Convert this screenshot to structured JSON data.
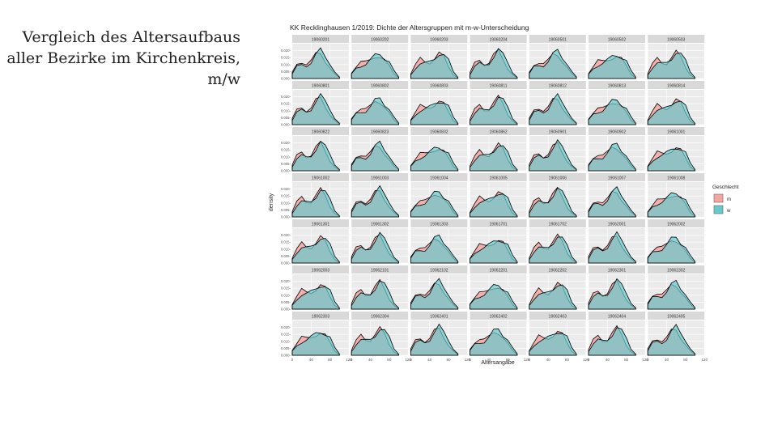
{
  "slide": {
    "title_lines": [
      "Vergleich des Altersaufbaus",
      "aller Bezirke im Kirchenkreis,",
      "m/w"
    ]
  },
  "chart_data": {
    "type": "area",
    "subtype": "facetted-density",
    "title": "KK Recklinghausen 1/2019: Dichte der Altersgruppen mit m-w-Unterscheidung",
    "xlabel": "Altersangabe",
    "ylabel": "density",
    "xlim": [
      0,
      120
    ],
    "ylim": [
      0,
      0.025
    ],
    "x_ticks": [
      0,
      40,
      80,
      120
    ],
    "x_tick_labels": [
      "0",
      "40",
      "80",
      "120"
    ],
    "y_ticks": [
      0,
      0.005,
      0.01,
      0.015,
      0.02
    ],
    "y_tick_labels": [
      "0.000-",
      "0.005-",
      "0.010-",
      "0.015-",
      "0.020-"
    ],
    "grid": true,
    "legend": {
      "title": "Geschlecht",
      "position": "right",
      "entries": [
        {
          "label": "m",
          "color": "#f4a6a1"
        },
        {
          "label": "w",
          "color": "#66c9cc"
        }
      ]
    },
    "colors": {
      "m": "#f4a6a1",
      "w": "#66c9cc",
      "panel": "#ebebeb",
      "strip": "#d9d9d9",
      "outline": "#000000"
    },
    "facets": [
      "19060201",
      "19060202",
      "19060203",
      "19060204",
      "19060501",
      "19060502",
      "19060503",
      "19060801",
      "19060802",
      "19060803",
      "19060811",
      "19060812",
      "19060813",
      "19060814",
      "19060822",
      "19060823",
      "19060832",
      "19060862",
      "19060901",
      "19060902",
      "19061001",
      "19061002",
      "19061003",
      "19061004",
      "19061005",
      "19061006",
      "19061007",
      "19061008",
      "19061301",
      "19061302",
      "19061303",
      "19061701",
      "19061702",
      "19062001",
      "19062002",
      "19062003",
      "19062101",
      "19062102",
      "19062201",
      "19062202",
      "19062301",
      "19062302",
      "19062303",
      "19062304",
      "19062401",
      "19062402",
      "19062403",
      "19062404",
      "19062405"
    ],
    "series_shape": {
      "x": [
        0,
        10,
        20,
        30,
        40,
        50,
        60,
        70,
        80,
        90,
        100
      ],
      "m": [
        0.004,
        0.01,
        0.013,
        0.011,
        0.012,
        0.016,
        0.018,
        0.014,
        0.008,
        0.003,
        0.0005
      ],
      "w": [
        0.003,
        0.008,
        0.01,
        0.01,
        0.012,
        0.016,
        0.019,
        0.016,
        0.012,
        0.005,
        0.001
      ]
    }
  },
  "footer": {
    "text": ""
  }
}
